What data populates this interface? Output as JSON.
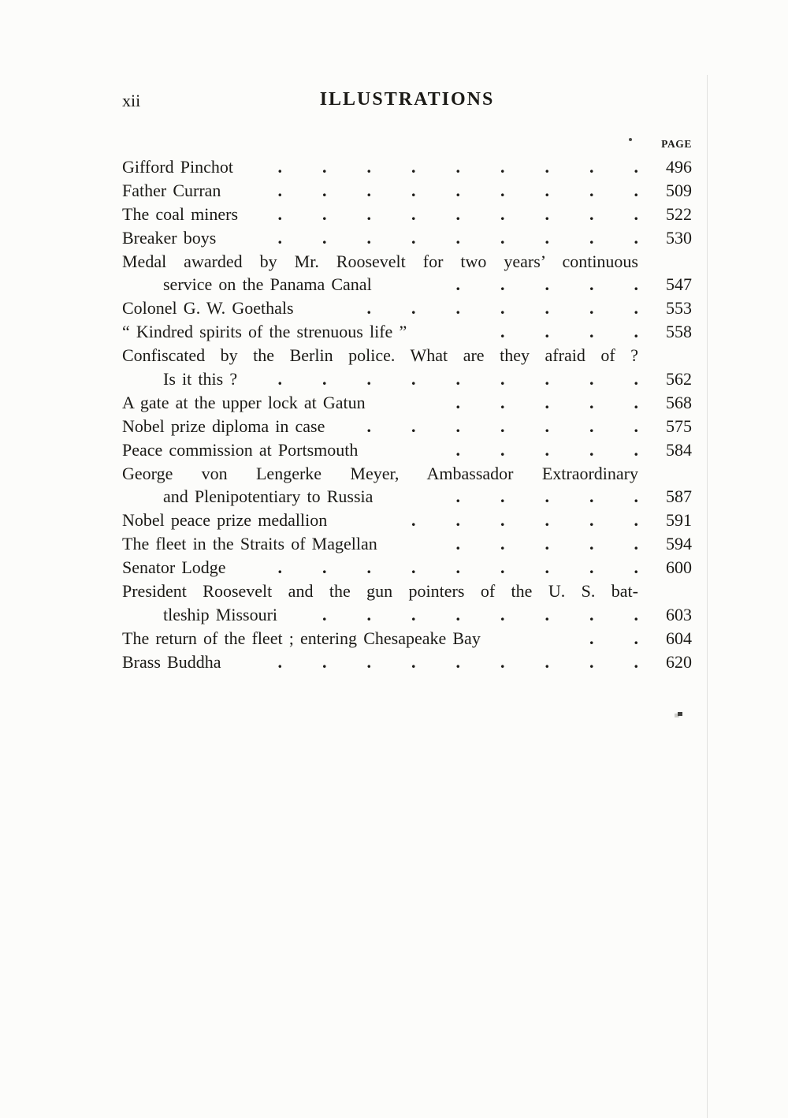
{
  "page": {
    "folio": "xii",
    "title": "ILLUSTRATIONS",
    "column_header": "PAGE"
  },
  "colors": {
    "paper": "#fcfcfa",
    "ink": "#1b1a16"
  },
  "entries": [
    {
      "title": "Gifford Pinchot",
      "dots": 9,
      "page": "496"
    },
    {
      "title": "Father Curran",
      "dots": 9,
      "page": "509"
    },
    {
      "title": "The coal miners",
      "dots": 9,
      "page": "522"
    },
    {
      "title": "Breaker boys",
      "dots": 9,
      "page": "530"
    },
    {
      "title": "Medal awarded by Mr. Roosevelt for two years’ continuous",
      "line2": "service on the Panama Canal",
      "dots": 5,
      "page": "547"
    },
    {
      "title": "Colonel G. W. Goethals",
      "dots": 7,
      "page": "553"
    },
    {
      "title": "“ Kindred spirits of the strenuous life ”",
      "dots": 4,
      "page": "558"
    },
    {
      "title": "Confiscated by the Berlin police.  What are they afraid of ?",
      "line2": "Is it this ?",
      "dots": 9,
      "page": "562"
    },
    {
      "title": "A gate at the upper lock at Gatun",
      "dots": 5,
      "page": "568"
    },
    {
      "title": "Nobel prize diploma in case",
      "dots": 7,
      "page": "575"
    },
    {
      "title": "Peace commission at Portsmouth",
      "dots": 5,
      "page": "584"
    },
    {
      "title": "George von Lengerke Meyer, Ambassador Extraordinary",
      "line2": "and Plenipotentiary to Russia",
      "dots": 5,
      "page": "587"
    },
    {
      "title": "Nobel peace prize medallion",
      "dots": 6,
      "page": "591"
    },
    {
      "title": "The fleet in the Straits of Magellan",
      "dots": 5,
      "page": "594"
    },
    {
      "title": "Senator Lodge",
      "dots": 9,
      "page": "600"
    },
    {
      "title": "President Roosevelt and the gun pointers of the U. S. bat-",
      "line2": "tleship Missouri",
      "dots": 8,
      "page": "603"
    },
    {
      "title": "The return of the fleet ; entering Chesapeake Bay",
      "dots": 2,
      "page": "604"
    },
    {
      "title": "Brass Buddha",
      "dots": 9,
      "page": "620"
    }
  ]
}
